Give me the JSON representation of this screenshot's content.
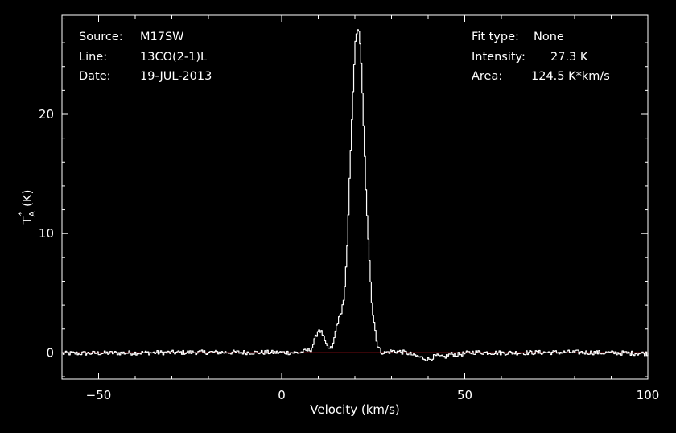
{
  "colors": {
    "background": "#000000",
    "foreground": "#ffffff",
    "baseline": "#e0141e"
  },
  "info_left": [
    {
      "label": "Source:",
      "value": "M17SW"
    },
    {
      "label": "Line:",
      "value": "13CO(2-1)L"
    },
    {
      "label": "Date:",
      "value": "19-JUL-2013"
    }
  ],
  "info_right": [
    {
      "label": "Fit type:",
      "value": "None"
    },
    {
      "label": "Intensity:",
      "value": "27.3 K"
    },
    {
      "label": "Area:",
      "value": "124.5 K*km/s"
    }
  ],
  "chart_data": {
    "type": "line",
    "title": "",
    "xlabel": "Velocity (km/s)",
    "ylabel": "T*A (K)",
    "ylabel_parts": {
      "base": "T",
      "sub": "A",
      "sup": "*",
      "unit": "(K)"
    },
    "xlim": [
      -60,
      100
    ],
    "ylim": [
      -2.2,
      28.3
    ],
    "x_ticks": [
      -50,
      0,
      50,
      100
    ],
    "x_tick_labels": [
      "−50",
      "0",
      "50",
      "100"
    ],
    "y_ticks": [
      0,
      10,
      20
    ],
    "y_tick_labels": [
      "0",
      "10",
      "20"
    ],
    "grid": false,
    "legend": "none",
    "series": [
      {
        "x": [
          -60,
          -20,
          5,
          8,
          9,
          10,
          11,
          12,
          13,
          13.8,
          15,
          16,
          17,
          17.8,
          18.4,
          19.2,
          20,
          20.5,
          21,
          21.5,
          22.2,
          23,
          24,
          24.6,
          25.3,
          26,
          27,
          28,
          30,
          32,
          34,
          36,
          38,
          40,
          42,
          44,
          46,
          48,
          52,
          60,
          80,
          100
        ],
        "y": [
          -0.05,
          0.05,
          0.02,
          0.3,
          1.2,
          2.0,
          1.6,
          0.6,
          0.3,
          0.5,
          2.5,
          3.2,
          4.8,
          9.0,
          14.5,
          21.0,
          26.0,
          27.3,
          26.8,
          25.0,
          19.5,
          12.5,
          7.0,
          3.6,
          2.2,
          0.6,
          0.1,
          0.0,
          0.15,
          0.1,
          0.0,
          -0.2,
          -0.4,
          -0.55,
          -0.25,
          -0.4,
          -0.1,
          -0.15,
          0.05,
          0.0,
          0.05,
          -0.05
        ]
      },
      {
        "name": "baseline",
        "x": [
          -60,
          100
        ],
        "y": [
          0,
          0
        ]
      }
    ]
  }
}
